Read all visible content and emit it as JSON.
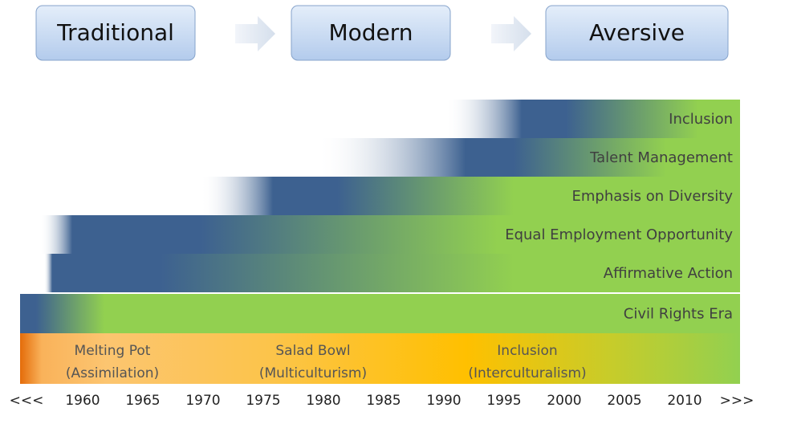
{
  "stages": [
    "Traditional",
    "Modern",
    "Aversive"
  ],
  "rows": [
    "Inclusion",
    "Talent Management",
    "Emphasis on Diversity",
    "Equal Employment Opportunity",
    "Affirmative Action",
    "Civil Rights Era"
  ],
  "eras": [
    {
      "name": "Melting Pot",
      "detail": "(Assimilation)"
    },
    {
      "name": "Salad Bowl",
      "detail": "(Multiculturism)"
    },
    {
      "name": "Inclusion",
      "detail": "(Interculturalism)"
    }
  ],
  "axis": [
    "<<<",
    "1960",
    "1965",
    "1970",
    "1975",
    "1980",
    "1985",
    "1990",
    "1995",
    "2000",
    "2005",
    "2010",
    ">>>"
  ]
}
